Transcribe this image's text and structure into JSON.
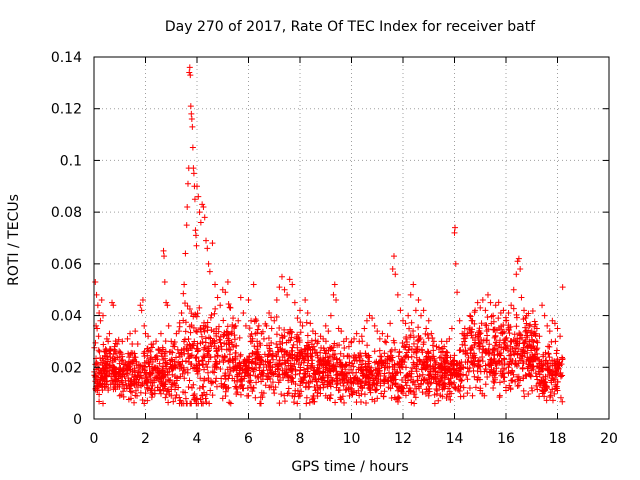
{
  "chart_data": {
    "type": "scatter",
    "title": "Day 270 of 2017, Rate Of TEC Index for receiver batf",
    "xlabel": "GPS time / hours",
    "ylabel": "ROTI / TECUs",
    "xlim": [
      0,
      20
    ],
    "ylim": [
      0,
      0.14
    ],
    "xticks": [
      0,
      2,
      4,
      6,
      8,
      10,
      12,
      14,
      16,
      18,
      20
    ],
    "yticks": [
      0,
      0.02,
      0.04,
      0.06,
      0.08,
      0.1,
      0.12,
      0.14
    ],
    "ytick_labels": [
      "0",
      "0.02",
      "0.04",
      "0.06",
      "0.08",
      "0.1",
      "0.12",
      "0.14"
    ],
    "grid": true,
    "marker": "+",
    "color": "#ff0000",
    "series": [
      {
        "name": "ROTI",
        "points": [
          [
            0.05,
            0.053
          ],
          [
            0.1,
            0.048
          ],
          [
            0.15,
            0.044
          ],
          [
            0.2,
            0.041
          ],
          [
            0.25,
            0.038
          ],
          [
            0.08,
            0.036
          ],
          [
            0.12,
            0.035
          ],
          [
            0.3,
            0.046
          ],
          [
            0.35,
            0.04
          ],
          [
            0.18,
            0.032
          ],
          [
            0.5,
            0.031
          ],
          [
            0.55,
            0.03
          ],
          [
            0.45,
            0.027
          ],
          [
            0.6,
            0.033
          ],
          [
            0.65,
            0.027
          ],
          [
            0.7,
            0.045
          ],
          [
            0.75,
            0.044
          ],
          [
            0.8,
            0.028
          ],
          [
            0.9,
            0.029
          ],
          [
            0.85,
            0.018
          ],
          [
            1.0,
            0.024
          ],
          [
            1.1,
            0.03
          ],
          [
            1.2,
            0.019
          ],
          [
            1.3,
            0.031
          ],
          [
            1.4,
            0.033
          ],
          [
            1.5,
            0.022
          ],
          [
            1.6,
            0.034
          ],
          [
            1.7,
            0.029
          ],
          [
            1.8,
            0.044
          ],
          [
            1.85,
            0.042
          ],
          [
            1.9,
            0.046
          ],
          [
            1.95,
            0.036
          ],
          [
            2.0,
            0.033
          ],
          [
            2.1,
            0.032
          ],
          [
            2.2,
            0.026
          ],
          [
            2.3,
            0.029
          ],
          [
            2.4,
            0.024
          ],
          [
            2.5,
            0.027
          ],
          [
            2.6,
            0.033
          ],
          [
            2.7,
            0.065
          ],
          [
            2.72,
            0.063
          ],
          [
            2.75,
            0.053
          ],
          [
            2.8,
            0.045
          ],
          [
            2.85,
            0.044
          ],
          [
            2.9,
            0.036
          ],
          [
            3.0,
            0.03
          ],
          [
            3.1,
            0.029
          ],
          [
            3.2,
            0.033
          ],
          [
            3.3,
            0.034
          ],
          [
            3.4,
            0.041
          ],
          [
            3.5,
            0.052
          ],
          [
            3.55,
            0.064
          ],
          [
            3.6,
            0.075
          ],
          [
            3.62,
            0.082
          ],
          [
            3.65,
            0.091
          ],
          [
            3.68,
            0.097
          ],
          [
            3.7,
            0.134
          ],
          [
            3.72,
            0.136
          ],
          [
            3.74,
            0.133
          ],
          [
            3.76,
            0.121
          ],
          [
            3.78,
            0.118
          ],
          [
            3.8,
            0.116
          ],
          [
            3.82,
            0.113
          ],
          [
            3.84,
            0.105
          ],
          [
            3.86,
            0.097
          ],
          [
            3.88,
            0.095
          ],
          [
            3.9,
            0.09
          ],
          [
            3.92,
            0.085
          ],
          [
            3.94,
            0.073
          ],
          [
            3.96,
            0.071
          ],
          [
            3.98,
            0.067
          ],
          [
            4.0,
            0.09
          ],
          [
            4.05,
            0.086
          ],
          [
            4.1,
            0.08
          ],
          [
            4.15,
            0.076
          ],
          [
            4.2,
            0.083
          ],
          [
            4.25,
            0.082
          ],
          [
            4.3,
            0.078
          ],
          [
            4.35,
            0.069
          ],
          [
            4.4,
            0.066
          ],
          [
            4.45,
            0.06
          ],
          [
            4.5,
            0.057
          ],
          [
            4.6,
            0.068
          ],
          [
            4.7,
            0.052
          ],
          [
            4.8,
            0.047
          ],
          [
            4.9,
            0.044
          ],
          [
            5.0,
            0.05
          ],
          [
            5.1,
            0.049
          ],
          [
            5.2,
            0.053
          ],
          [
            5.3,
            0.043
          ],
          [
            5.4,
            0.039
          ],
          [
            5.5,
            0.036
          ],
          [
            5.6,
            0.038
          ],
          [
            5.7,
            0.047
          ],
          [
            5.8,
            0.041
          ],
          [
            5.9,
            0.036
          ],
          [
            6.0,
            0.046
          ],
          [
            6.1,
            0.038
          ],
          [
            6.2,
            0.052
          ],
          [
            6.3,
            0.038
          ],
          [
            6.4,
            0.036
          ],
          [
            6.5,
            0.033
          ],
          [
            6.6,
            0.031
          ],
          [
            6.7,
            0.036
          ],
          [
            6.8,
            0.041
          ],
          [
            6.9,
            0.035
          ],
          [
            7.0,
            0.038
          ],
          [
            7.1,
            0.046
          ],
          [
            7.2,
            0.051
          ],
          [
            7.3,
            0.055
          ],
          [
            7.4,
            0.05
          ],
          [
            7.5,
            0.048
          ],
          [
            7.6,
            0.054
          ],
          [
            7.7,
            0.052
          ],
          [
            7.8,
            0.045
          ],
          [
            7.9,
            0.039
          ],
          [
            8.0,
            0.042
          ],
          [
            8.1,
            0.036
          ],
          [
            8.2,
            0.046
          ],
          [
            8.3,
            0.041
          ],
          [
            8.4,
            0.037
          ],
          [
            8.5,
            0.034
          ],
          [
            8.6,
            0.033
          ],
          [
            8.7,
            0.03
          ],
          [
            8.8,
            0.032
          ],
          [
            8.9,
            0.031
          ],
          [
            9.0,
            0.036
          ],
          [
            9.1,
            0.034
          ],
          [
            9.2,
            0.04
          ],
          [
            9.3,
            0.048
          ],
          [
            9.35,
            0.052
          ],
          [
            9.4,
            0.046
          ],
          [
            9.5,
            0.035
          ],
          [
            9.6,
            0.034
          ],
          [
            9.7,
            0.03
          ],
          [
            9.8,
            0.031
          ],
          [
            9.9,
            0.028
          ],
          [
            10.0,
            0.03
          ],
          [
            10.1,
            0.031
          ],
          [
            10.2,
            0.033
          ],
          [
            10.3,
            0.03
          ],
          [
            10.4,
            0.032
          ],
          [
            10.5,
            0.035
          ],
          [
            10.6,
            0.038
          ],
          [
            10.7,
            0.04
          ],
          [
            10.8,
            0.039
          ],
          [
            10.9,
            0.036
          ],
          [
            11.0,
            0.034
          ],
          [
            11.1,
            0.031
          ],
          [
            11.2,
            0.033
          ],
          [
            11.3,
            0.03
          ],
          [
            11.4,
            0.032
          ],
          [
            11.5,
            0.037
          ],
          [
            11.6,
            0.058
          ],
          [
            11.65,
            0.063
          ],
          [
            11.7,
            0.056
          ],
          [
            11.8,
            0.048
          ],
          [
            11.9,
            0.042
          ],
          [
            12.0,
            0.038
          ],
          [
            12.1,
            0.037
          ],
          [
            12.2,
            0.04
          ],
          [
            12.3,
            0.048
          ],
          [
            12.4,
            0.052
          ],
          [
            12.5,
            0.042
          ],
          [
            12.6,
            0.046
          ],
          [
            12.7,
            0.04
          ],
          [
            12.8,
            0.042
          ],
          [
            12.9,
            0.035
          ],
          [
            13.0,
            0.038
          ],
          [
            13.1,
            0.033
          ],
          [
            13.2,
            0.03
          ],
          [
            13.3,
            0.028
          ],
          [
            13.4,
            0.027
          ],
          [
            13.5,
            0.03
          ],
          [
            13.6,
            0.028
          ],
          [
            13.7,
            0.03
          ],
          [
            13.8,
            0.031
          ],
          [
            13.9,
            0.035
          ],
          [
            14.0,
            0.072
          ],
          [
            14.02,
            0.074
          ],
          [
            14.05,
            0.06
          ],
          [
            14.1,
            0.049
          ],
          [
            14.2,
            0.038
          ],
          [
            14.3,
            0.033
          ],
          [
            14.4,
            0.035
          ],
          [
            14.5,
            0.033
          ],
          [
            14.6,
            0.04
          ],
          [
            14.7,
            0.038
          ],
          [
            14.8,
            0.042
          ],
          [
            14.9,
            0.045
          ],
          [
            15.0,
            0.043
          ],
          [
            15.1,
            0.046
          ],
          [
            15.2,
            0.042
          ],
          [
            15.3,
            0.048
          ],
          [
            15.4,
            0.045
          ],
          [
            15.5,
            0.04
          ],
          [
            15.6,
            0.044
          ],
          [
            15.7,
            0.039
          ],
          [
            15.8,
            0.041
          ],
          [
            15.9,
            0.042
          ],
          [
            16.0,
            0.038
          ],
          [
            16.1,
            0.041
          ],
          [
            16.2,
            0.044
          ],
          [
            16.3,
            0.05
          ],
          [
            16.4,
            0.056
          ],
          [
            16.45,
            0.061
          ],
          [
            16.5,
            0.062
          ],
          [
            16.55,
            0.058
          ],
          [
            16.6,
            0.047
          ],
          [
            16.7,
            0.042
          ],
          [
            16.8,
            0.04
          ],
          [
            16.9,
            0.036
          ],
          [
            17.0,
            0.034
          ],
          [
            17.1,
            0.033
          ],
          [
            17.2,
            0.035
          ],
          [
            17.3,
            0.032
          ],
          [
            17.4,
            0.044
          ],
          [
            17.5,
            0.04
          ],
          [
            17.6,
            0.036
          ],
          [
            17.7,
            0.034
          ],
          [
            17.8,
            0.038
          ],
          [
            17.9,
            0.037
          ],
          [
            18.0,
            0.035
          ],
          [
            18.1,
            0.032
          ],
          [
            18.2,
            0.051
          ],
          [
            14.5,
            0.01
          ],
          [
            14.6,
            0.012
          ],
          [
            14.7,
            0.009
          ],
          [
            15.0,
            0.011
          ],
          [
            15.5,
            0.012
          ],
          [
            16.0,
            0.011
          ],
          [
            16.5,
            0.013
          ],
          [
            17.0,
            0.012
          ],
          [
            17.5,
            0.014
          ],
          [
            18.0,
            0.011
          ],
          [
            5.0,
            0.008
          ],
          [
            6.0,
            0.009
          ],
          [
            7.0,
            0.01
          ],
          [
            8.0,
            0.009
          ],
          [
            9.0,
            0.009
          ],
          [
            10.0,
            0.01
          ],
          [
            11.0,
            0.008
          ],
          [
            12.0,
            0.01
          ],
          [
            13.0,
            0.009
          ],
          [
            4.0,
            0.008
          ],
          [
            3.0,
            0.009
          ],
          [
            2.0,
            0.01
          ],
          [
            1.0,
            0.009
          ]
        ]
      }
    ]
  }
}
